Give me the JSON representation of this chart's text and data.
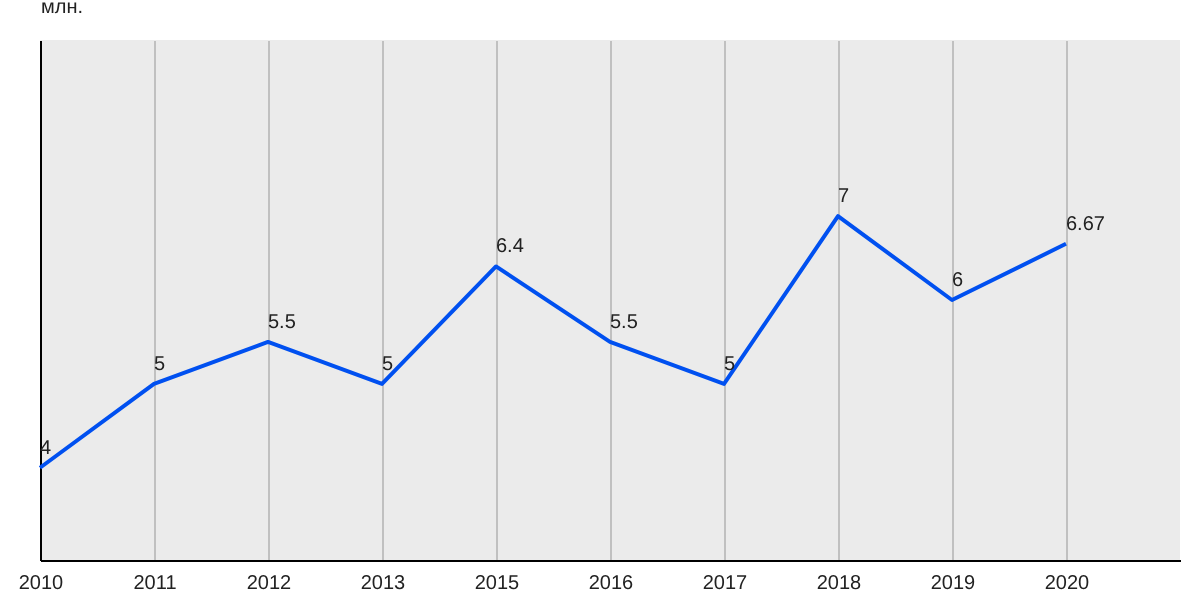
{
  "chart_data": {
    "type": "line",
    "ylabel": "млн.",
    "categories": [
      "2010",
      "2011",
      "2012",
      "2013",
      "2015",
      "2016",
      "2017",
      "2018",
      "2019",
      "2020"
    ],
    "series": [
      {
        "color": "#0050f0",
        "values": [
          4,
          5,
          5.5,
          5,
          6.4,
          5.5,
          5,
          7,
          6,
          6.67
        ]
      }
    ],
    "ylim": [
      2.9,
      9.1
    ],
    "tick_labels": "x",
    "grid": "x",
    "data_labels": true,
    "marker": "none",
    "line_style": "solid"
  }
}
